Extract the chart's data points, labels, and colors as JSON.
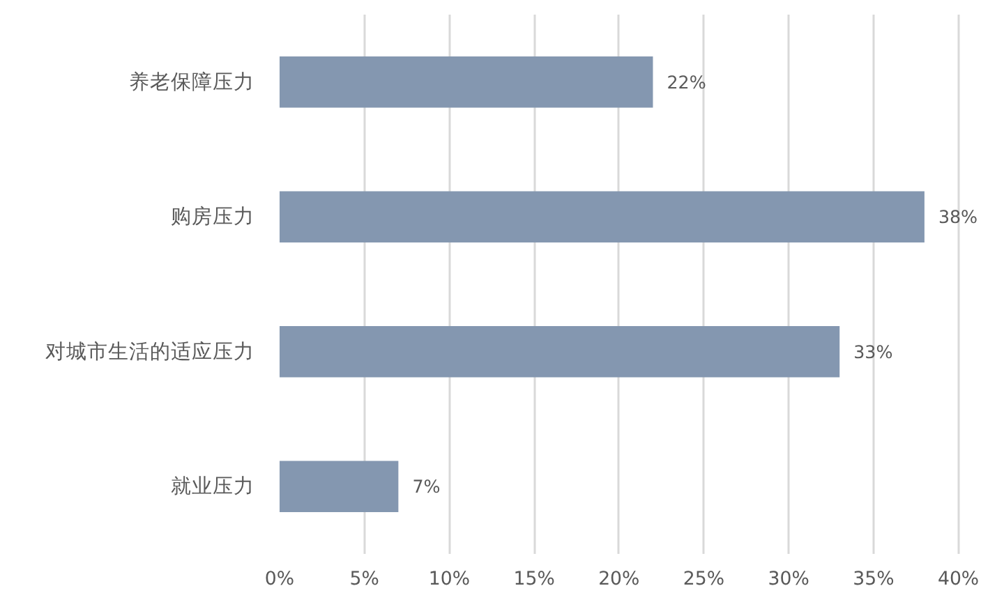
{
  "chart_data": {
    "type": "bar",
    "orientation": "horizontal",
    "categories": [
      "养老保障压力",
      "购房压力",
      "对城市生活的适应压力",
      "就业压力"
    ],
    "values": [
      22,
      38,
      33,
      7
    ],
    "value_labels": [
      "22%",
      "38%",
      "33%",
      "7%"
    ],
    "color": "#8497b0",
    "xlim": [
      0,
      40
    ],
    "xticks": [
      {
        "value": 0,
        "label": "0%"
      },
      {
        "value": 5,
        "label": "5%"
      },
      {
        "value": 10,
        "label": "10%"
      },
      {
        "value": 15,
        "label": "15%"
      },
      {
        "value": 20,
        "label": "20%"
      },
      {
        "value": 25,
        "label": "25%"
      },
      {
        "value": 30,
        "label": "30%"
      },
      {
        "value": 35,
        "label": "35%"
      },
      {
        "value": 40,
        "label": "40%"
      }
    ],
    "grid": "x"
  }
}
